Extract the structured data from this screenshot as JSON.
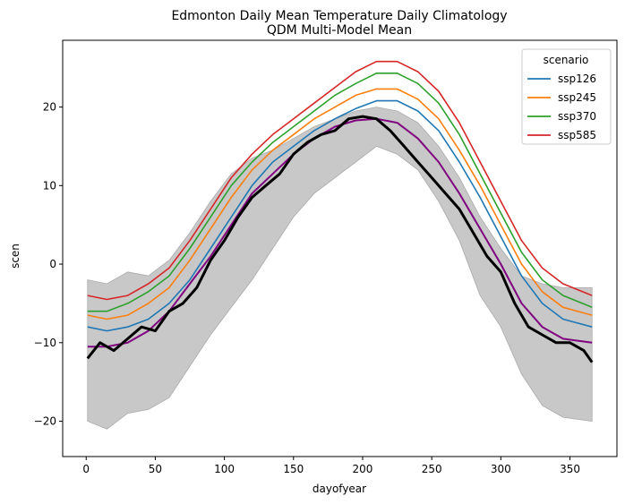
{
  "chart_data": {
    "type": "line",
    "title": "Edmonton Daily Mean Temperature Daily Climatology",
    "subtitle": "QDM Multi-Model Mean",
    "xlabel": "dayofyear",
    "ylabel": "scen",
    "xlim": [
      -17,
      384
    ],
    "ylim": [
      -24.5,
      28.5
    ],
    "xticks": [
      0,
      50,
      100,
      150,
      200,
      250,
      300,
      350
    ],
    "yticks": [
      -20,
      -10,
      0,
      10,
      20
    ],
    "grid": false,
    "legend": {
      "title": "scenario",
      "placement": "top-right"
    },
    "band": {
      "color": "#c8c8c8",
      "x": [
        1,
        15,
        30,
        45,
        60,
        75,
        90,
        105,
        120,
        135,
        150,
        165,
        180,
        195,
        210,
        225,
        240,
        255,
        270,
        285,
        300,
        315,
        330,
        345,
        366
      ],
      "upper": [
        -2,
        -2.5,
        -1,
        -1.5,
        0.5,
        4,
        8,
        11.5,
        13.5,
        14.5,
        16,
        17.5,
        18.5,
        19.5,
        20,
        19.5,
        18,
        15,
        11,
        6,
        2,
        -1.5,
        -2.5,
        -3,
        -3
      ],
      "lower": [
        -20,
        -21,
        -19,
        -18.5,
        -17,
        -13,
        -9,
        -5.5,
        -2,
        2,
        6,
        9,
        11,
        13,
        15,
        14,
        12,
        8,
        3,
        -4,
        -8,
        -14,
        -18,
        -19.5,
        -20
      ]
    },
    "series": [
      {
        "name": "ssp126",
        "color": "#1f77b4",
        "x": [
          1,
          15,
          30,
          45,
          60,
          75,
          90,
          105,
          120,
          135,
          150,
          165,
          180,
          195,
          210,
          225,
          240,
          255,
          270,
          285,
          300,
          315,
          330,
          345,
          366
        ],
        "values": [
          -8,
          -8.5,
          -8,
          -7,
          -5,
          -2,
          2,
          6,
          10,
          13,
          15,
          17,
          18.5,
          19.8,
          20.8,
          20.8,
          19.5,
          17,
          13,
          8.5,
          3.5,
          -1.5,
          -5,
          -7,
          -8
        ]
      },
      {
        "name": "ssp245",
        "color": "#ff7f0e",
        "x": [
          1,
          15,
          30,
          45,
          60,
          75,
          90,
          105,
          120,
          135,
          150,
          165,
          180,
          195,
          210,
          225,
          240,
          255,
          270,
          285,
          300,
          315,
          330,
          345,
          366
        ],
        "values": [
          -6.5,
          -7,
          -6.5,
          -5,
          -3,
          0.5,
          4.5,
          8.5,
          12,
          14.5,
          16.5,
          18.5,
          20,
          21.5,
          22.3,
          22.3,
          21,
          18.5,
          14.5,
          10,
          5,
          0,
          -3.5,
          -5.5,
          -6.5
        ]
      },
      {
        "name": "ssp370",
        "color": "#2ca02c",
        "x": [
          1,
          15,
          30,
          45,
          60,
          75,
          90,
          105,
          120,
          135,
          150,
          165,
          180,
          195,
          210,
          225,
          240,
          255,
          270,
          285,
          300,
          315,
          330,
          345,
          366
        ],
        "values": [
          -6,
          -6,
          -5,
          -3.5,
          -1.5,
          2,
          6,
          10,
          13,
          15.5,
          17.5,
          19.5,
          21.5,
          23,
          24.3,
          24.3,
          23,
          20.5,
          16.5,
          11.5,
          6.5,
          1.5,
          -2,
          -4,
          -5.5
        ]
      },
      {
        "name": "ssp585",
        "color": "#d62728",
        "x": [
          1,
          15,
          30,
          45,
          60,
          75,
          90,
          105,
          120,
          135,
          150,
          165,
          180,
          195,
          210,
          225,
          240,
          255,
          270,
          285,
          300,
          315,
          330,
          345,
          366
        ],
        "values": [
          -4,
          -4.5,
          -4,
          -2.5,
          -0.5,
          3,
          7,
          11,
          14,
          16.5,
          18.5,
          20.5,
          22.5,
          24.5,
          25.8,
          25.8,
          24.5,
          22,
          18,
          13,
          8,
          3,
          -0.5,
          -2.5,
          -4
        ]
      },
      {
        "color": "#800080",
        "x": [
          1,
          15,
          30,
          45,
          60,
          75,
          90,
          105,
          120,
          135,
          150,
          165,
          180,
          195,
          210,
          225,
          240,
          255,
          270,
          285,
          300,
          315,
          330,
          345,
          366
        ],
        "values": [
          -10.5,
          -10.5,
          -10,
          -8.5,
          -6,
          -2.5,
          1,
          5,
          9,
          11.5,
          14,
          16,
          17.5,
          18.3,
          18.5,
          18,
          16,
          13,
          9,
          4.5,
          0,
          -5,
          -8,
          -9.5,
          -10
        ]
      },
      {
        "color": "#000000",
        "x": [
          1,
          10,
          20,
          30,
          40,
          50,
          60,
          70,
          80,
          90,
          100,
          110,
          120,
          130,
          140,
          150,
          160,
          170,
          180,
          190,
          200,
          210,
          220,
          230,
          240,
          250,
          260,
          270,
          280,
          290,
          300,
          310,
          320,
          330,
          340,
          350,
          360,
          366
        ],
        "values": [
          -12,
          -10,
          -11,
          -9.5,
          -8,
          -8.5,
          -6,
          -5,
          -3,
          0.5,
          3,
          6,
          8.5,
          10,
          11.5,
          14,
          15.5,
          16.5,
          17,
          18.5,
          18.8,
          18.5,
          17,
          15,
          13,
          11,
          9,
          7,
          4,
          1,
          -1,
          -5,
          -8,
          -9,
          -10,
          -10,
          -11,
          -12.5
        ]
      }
    ]
  }
}
